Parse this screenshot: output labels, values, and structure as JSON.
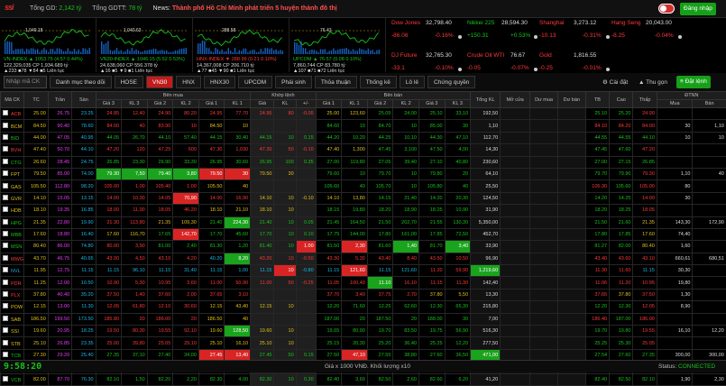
{
  "top": {
    "logo": "ssi",
    "gd_label": "Tổng GD:",
    "gd_value": "2,142 tỷ",
    "gdtt_label": "Tổng GDTT:",
    "gdtt_value": "78 tỷ",
    "news_label": "News:",
    "news_text": "Thành phố Hồ Chí Minh phát triển 5 huyện thành đô thị",
    "login": "Đăng nhập"
  },
  "indices": [
    {
      "name": "VN-INDEX",
      "l1": "VN-INDEX ▲ 1053.75 (4.57 0.44%)",
      "l2": "122,329,035 CP 1,934.689 tỷ",
      "l3": "▲233 ■78 ▼84 ■5 Liên tục",
      "top": "1,049.18"
    },
    {
      "name": "VN30-INDEX",
      "l1": "VN30-INDEX ▲ 1046.15 (5.52 0.53%)",
      "l2": "24,638,060 CP 556.378 tỷ",
      "l3": "▲16 ■5 ▼9 ■1 Liên tục",
      "top": "1,040.63"
    },
    {
      "name": "HNX-INDEX",
      "l1": "HNX-INDEX ▼ 288.99 (0.21 0.10%)",
      "l2": "14,367,008 CP 206.710 tỷ",
      "l3": "▲77 ■45 ▼90 ■1 Liên tục",
      "top": "288.58"
    },
    {
      "name": "UPCOM",
      "l1": "UPCOM ▲ 76.57 (0.08 0.10%)",
      "l2": "7,860,744 CP 83.780 tỷ",
      "l3": "▲107 ■71 ■72 Liên tục",
      "top": "76.43"
    }
  ],
  "world": [
    {
      "name": "Dow Jones",
      "value": "32,798.40",
      "chg": "-86.06",
      "pct": "-0.16%"
    },
    {
      "name": "Nikkei 225",
      "value": "28,594.30",
      "chg": "+150.31",
      "pct": "+0.53%"
    },
    {
      "name": "Shanghai",
      "value": "3,273.12",
      "chg": "-10.13",
      "pct": "-0.31%"
    },
    {
      "name": "Hang Seng",
      "value": "20,043.00",
      "chg": "-8.25",
      "pct": "-0.04%"
    },
    {
      "name": "DJ Future",
      "value": "32,765.30",
      "chg": "-33.1",
      "pct": "-0.10%"
    },
    {
      "name": "Crude Oil WTI",
      "value": "76.67",
      "chg": "-0.05",
      "pct": "-0.07%"
    },
    {
      "name": "Gold",
      "value": "1,816.55",
      "chg": "-0.25",
      "pct": "-0.01%"
    }
  ],
  "toolbar": {
    "search": "Nhập mã CK",
    "tabs": [
      "Danh mục theo dõi",
      "HOSE",
      "VN30",
      "HNX",
      "HNX30",
      "UPCOM",
      "Phái sinh",
      "Thỏa thuận",
      "Thống kê",
      "Lô lẻ",
      "Chứng quyền"
    ],
    "settings": "Cài đặt",
    "collapse": "Thu gọn",
    "order": "Đặt lệnh"
  },
  "headers": {
    "g1": "Bên mua",
    "g2": "Khớp lệnh",
    "g3": "Bên bán",
    "g4": "ĐTNN",
    "cols": [
      "Mã CK",
      "TC",
      "Trần",
      "Sàn",
      "Giá 3",
      "KL 3",
      "Giá 2",
      "KL 2",
      "Giá 1",
      "KL 1",
      "Giá",
      "KL",
      "+/-",
      "Giá 1",
      "KL 1",
      "Giá 2",
      "KL 2",
      "Giá 3",
      "KL 3",
      "Tổng KL",
      "Mở cửa",
      "Dư mua",
      "Dư bán",
      "TB",
      "Cao",
      "Thấp",
      "Mua",
      "Bán"
    ]
  },
  "rows": [
    [
      "ACB",
      "25.00",
      "26.75",
      "23.25",
      "24.85",
      "12,40",
      "24.90",
      "80,20",
      "24.95",
      "77,70",
      "24.95",
      "80",
      "-0.05",
      "25.00",
      "123,60",
      "25.05",
      "24,00",
      "25.10",
      "33,10",
      "192,50",
      "",
      "",
      "",
      "25.10",
      "25.20",
      "24.90",
      "",
      ""
    ],
    [
      "BCM",
      "84.50",
      "90.40",
      "78.60",
      "84.00",
      "40",
      "83.90",
      "10",
      "84.50",
      "10",
      "",
      "",
      "",
      "84.60",
      "10",
      "84.70",
      "10",
      "85.00",
      "30",
      "1,10",
      "",
      "",
      "",
      "84.10",
      "84.20",
      "84.00",
      "30",
      "1,10"
    ],
    [
      "BID",
      "44.00",
      "47.05",
      "40.95",
      "44.05",
      "26,70",
      "44.10",
      "57,40",
      "44.15",
      "30,40",
      "44.15",
      "10",
      "0.15",
      "44.20",
      "10,20",
      "44.25",
      "10,10",
      "44.30",
      "47,10",
      "112,70",
      "",
      "",
      "",
      "44.55",
      "44.55",
      "44.10",
      "10",
      "10"
    ],
    [
      "BVH",
      "47.40",
      "50.70",
      "44.10",
      "47.20",
      "120",
      "47.25",
      "600",
      "47.30",
      "1,030",
      "47.30",
      "50",
      "-0.10",
      "47.40",
      "1,300",
      "47.45",
      "3,100",
      "47.50",
      "4,00",
      "14,30",
      "",
      "",
      "",
      "47.45",
      "47.60",
      "47.20",
      "",
      ""
    ],
    [
      "CTG",
      "26.60",
      "28.45",
      "24.75",
      "26.85",
      "23,30",
      "26.90",
      "33,30",
      "26.95",
      "30,60",
      "26.95",
      "100",
      "0.35",
      "27.00",
      "119,80",
      "27.05",
      "39,40",
      "27.10",
      "40,80",
      "230,60",
      "",
      "",
      "",
      "27.00",
      "27.15",
      "26.85",
      "",
      ""
    ],
    [
      "FPT",
      "79.50",
      "85.00",
      "74.00",
      "79.30",
      "7,50",
      "79.40",
      "3,80",
      "79.50",
      "30",
      "79.50",
      "30",
      "",
      "79.60",
      "10",
      "79.70",
      "10",
      "79.80",
      "20",
      "64,10",
      "",
      "",
      "",
      "79.70",
      "79.90",
      "79.30",
      "1,10",
      "40"
    ],
    [
      "GAS",
      "105.50",
      "112.80",
      "98.20",
      "105.00",
      "1,00",
      "105.40",
      "1,00",
      "105.50",
      "40",
      "",
      "",
      "",
      "105.60",
      "40",
      "105.70",
      "10",
      "105.80",
      "40",
      "25,50",
      "",
      "",
      "",
      "105.30",
      "105.60",
      "105.00",
      "80",
      ""
    ],
    [
      "GVR",
      "14.10",
      "15.05",
      "13.15",
      "14.00",
      "10,30",
      "14.05",
      "70,90",
      "14.00",
      "16,90",
      "14.10",
      "10",
      "-0.10",
      "14.10",
      "13,80",
      "14.15",
      "21,40",
      "14.20",
      "20,30",
      "124,50",
      "",
      "",
      "",
      "14.20",
      "14.25",
      "14.00",
      "30",
      ""
    ],
    [
      "HDB",
      "18.10",
      "19.35",
      "16.85",
      "18.00",
      "11,00",
      "18.05",
      "46,20",
      "18.10",
      "21,10",
      "18.10",
      "10",
      "",
      "18.15",
      "19,80",
      "18.20",
      "18,90",
      "18.25",
      "10,90",
      "31,90",
      "",
      "",
      "",
      "18.20",
      "18.25",
      "18.05",
      "",
      ""
    ],
    [
      "HPG",
      "21.35",
      "22.80",
      "19.90",
      "21.30",
      "113,80",
      "21.35",
      "109,30",
      "21.40",
      "224,30",
      "21.40",
      "10",
      "0.05",
      "21.45",
      "164,50",
      "21.50",
      "202,70",
      "21.55",
      "130,30",
      "5,350,00",
      "",
      "",
      "",
      "21.50",
      "21.60",
      "21.35",
      "143,30",
      "172,90"
    ],
    [
      "MBB",
      "17.60",
      "18.80",
      "16.40",
      "17.60",
      "116,70",
      "17.65",
      "142,70",
      "17.70",
      "45,60",
      "17.70",
      "10",
      "0.10",
      "17.75",
      "144,00",
      "17.80",
      "161,00",
      "17.85",
      "72,50",
      "452,70",
      "",
      "",
      "",
      "17.80",
      "17.85",
      "17.60",
      "74,40",
      ""
    ],
    [
      "MSN",
      "80.40",
      "86.00",
      "74.80",
      "80.00",
      "3,90",
      "81.00",
      "2,40",
      "81.30",
      "1,20",
      "81.40",
      "10",
      "1.00",
      "81.50",
      "2,30",
      "81.60",
      "1,40",
      "81.70",
      "3,40",
      "33,90",
      "",
      "",
      "",
      "81.27",
      "82.00",
      "80.40",
      "1,60",
      ""
    ],
    [
      "MWG",
      "43.70",
      "46.75",
      "40.65",
      "43.00",
      "4,50",
      "43.10",
      "4,20",
      "40.20",
      "8,20",
      "43.20",
      "10",
      "-0.50",
      "43.30",
      "5,30",
      "43.40",
      "8,40",
      "43.50",
      "10,50",
      "96,90",
      "",
      "",
      "",
      "43.40",
      "43.60",
      "43.10",
      "660,61",
      "680,51"
    ],
    [
      "NVL",
      "11.95",
      "12.75",
      "11.15",
      "11.15",
      "96,10",
      "11.10",
      "31,40",
      "11.15",
      "1,00",
      "11.15",
      "10",
      "-0.80",
      "11.15",
      "121,60",
      "11.15",
      "121,60",
      "11.20",
      "59,90",
      "1,219,60",
      "",
      "",
      "",
      "11.30",
      "11.60",
      "11.15",
      "30,30",
      ""
    ],
    [
      "PDR",
      "11.25",
      "12.00",
      "10.50",
      "10.90",
      "5,30",
      "10.95",
      "3,60",
      "11.00",
      "50,90",
      "11.00",
      "50",
      "-0.25",
      "11.05",
      "100,40",
      "11.10",
      "16,10",
      "11.15",
      "11,30",
      "142,40",
      "",
      "",
      "",
      "11.06",
      "11.20",
      "10.95",
      "19,80",
      ""
    ],
    [
      "PLX",
      "37.80",
      "40.40",
      "35.20",
      "37.50",
      "1,40",
      "37.60",
      "2,00",
      "37.65",
      "3,10",
      "",
      "",
      "",
      "37.70",
      "3,40",
      "37.75",
      "2,70",
      "37.80",
      "5,50",
      "13,30",
      "",
      "",
      "",
      "37.65",
      "37.80",
      "37.50",
      "1,30",
      ""
    ],
    [
      "POW",
      "12.15",
      "13.00",
      "11.30",
      "12.05",
      "61,80",
      "12.10",
      "30,60",
      "12.15",
      "43,40",
      "12.15",
      "10",
      "",
      "12.20",
      "71,60",
      "12.25",
      "62,60",
      "12.30",
      "65,30",
      "215,80",
      "",
      "",
      "",
      "12.20",
      "12.30",
      "12.05",
      "8,90",
      ""
    ],
    [
      "SAB",
      "186.50",
      "199.50",
      "173.50",
      "185.80",
      "20",
      "186.00",
      "20",
      "186.50",
      "40",
      "",
      "",
      "",
      "187.00",
      "20",
      "187.50",
      "20",
      "188.00",
      "30",
      "7,00",
      "",
      "",
      "",
      "186.40",
      "187.00",
      "186.00",
      "",
      ""
    ],
    [
      "SSI",
      "19.60",
      "20.95",
      "18.25",
      "19.50",
      "80,30",
      "19.55",
      "92,10",
      "19.60",
      "128,50",
      "19.60",
      "10",
      "",
      "19.65",
      "80,90",
      "19.70",
      "83,50",
      "19.75",
      "56,90",
      "516,30",
      "",
      "",
      "",
      "19.70",
      "19.80",
      "19.55",
      "16,10",
      "12,20"
    ],
    [
      "STB",
      "25.10",
      "26.85",
      "23.35",
      "25.00",
      "39,80",
      "25.05",
      "29,10",
      "25.10",
      "16,10",
      "25.10",
      "10",
      "",
      "25.15",
      "20,30",
      "25.20",
      "36,40",
      "25.25",
      "12,20",
      "277,50",
      "",
      "",
      "",
      "25.25",
      "25.30",
      "25.05",
      "",
      ""
    ],
    [
      "TCB",
      "27.30",
      "29.20",
      "25.40",
      "27.35",
      "37,10",
      "27.40",
      "34,00",
      "27.45",
      "13,40",
      "27.45",
      "50",
      "0.15",
      "27.50",
      "47,10",
      "27.55",
      "38,80",
      "27.60",
      "36,50",
      "471,00",
      "",
      "",
      "",
      "27.54",
      "27.60",
      "27.35",
      "300,00",
      "300,00"
    ],
    [
      "TPB",
      "25.60",
      "27.35",
      "23.85",
      "25.55",
      "5,40",
      "25.60",
      "20,70",
      "25.65",
      "9,30",
      "25.65",
      "10",
      "0.05",
      "25.70",
      "23,20",
      "25.75",
      "11,30",
      "25.80",
      "12,00",
      "91,00",
      "",
      "",
      "",
      "25.70",
      "25.75",
      "25.55",
      "",
      ""
    ],
    [
      "VCB",
      "82.00",
      "87.70",
      "76.30",
      "82.10",
      "1,50",
      "82.20",
      "2,20",
      "82.30",
      "4,00",
      "82.30",
      "10",
      "0.30",
      "82.40",
      "3,60",
      "82.50",
      "2,60",
      "82.60",
      "6,20",
      "41,20",
      "",
      "",
      "",
      "82.40",
      "82.50",
      "82.10",
      "1,90",
      "2,30"
    ]
  ],
  "footer": {
    "clock": "9:58:20",
    "unit": "Giá x 1000 VNĐ. Khối lượng x10",
    "status_label": "Status:",
    "status": "CONNECTED"
  }
}
